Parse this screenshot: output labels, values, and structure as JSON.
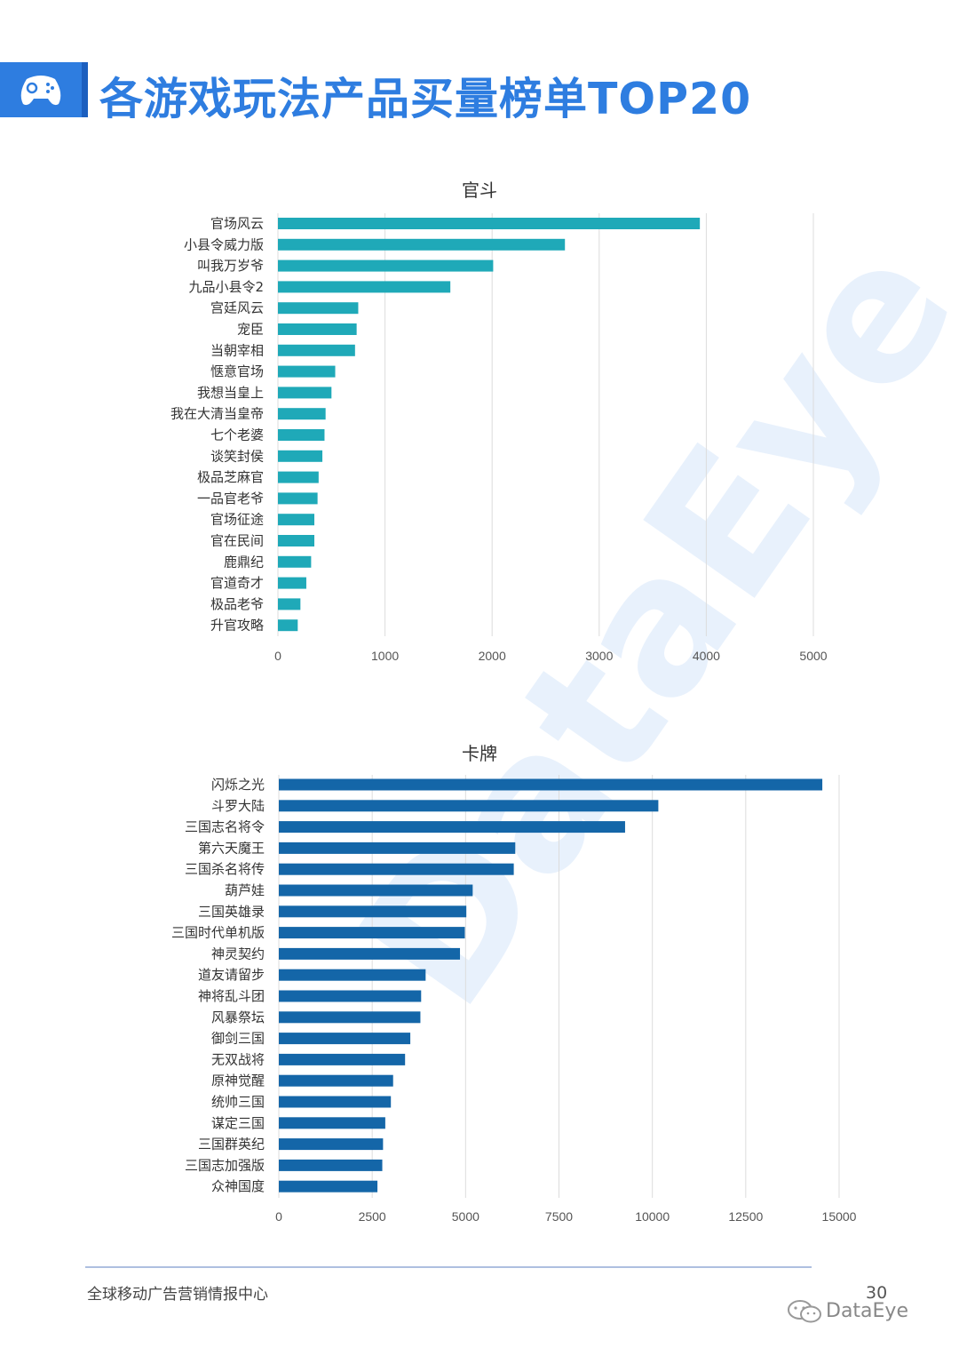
{
  "header": {
    "title": "各游戏玩法产品买量榜单TOP20",
    "icon": "gamepad-icon"
  },
  "watermark": "DataEye",
  "footer": {
    "org": "全球移动广告营销情报中心",
    "page_number": "30",
    "brand": "DataEye",
    "brand_icon": "wechat-icon"
  },
  "chart_data": [
    {
      "type": "bar",
      "orientation": "horizontal",
      "title": "官斗",
      "color": "#1fa9b8",
      "categories": [
        "官场风云",
        "小县令威力版",
        "叫我万岁爷",
        "九品小县令2",
        "宫廷风云",
        "宠臣",
        "当朝宰相",
        "惬意官场",
        "我想当皇上",
        "我在大清当皇帝",
        "七个老婆",
        "谈笑封侯",
        "极品芝麻官",
        "一品官老爷",
        "官场征途",
        "官在民间",
        "鹿鼎纪",
        "官道奇才",
        "极品老爷",
        "升官攻略"
      ],
      "values": [
        3940,
        2680,
        2010,
        1610,
        750,
        735,
        720,
        535,
        500,
        445,
        435,
        415,
        380,
        370,
        340,
        340,
        310,
        265,
        210,
        185
      ],
      "xlim": [
        0,
        5000
      ],
      "xticks": [
        "0",
        "1000",
        "2000",
        "3000",
        "4000",
        "5000"
      ],
      "grid": true,
      "legend": "none"
    },
    {
      "type": "bar",
      "orientation": "horizontal",
      "title": "卡牌",
      "color": "#1466a8",
      "categories": [
        "闪烁之光",
        "斗罗大陆",
        "三国志名将令",
        "第六天魔王",
        "三国杀名将传",
        "葫芦娃",
        "三国英雄录",
        "三国时代单机版",
        "神灵契约",
        "道友请留步",
        "神将乱斗团",
        "风暴祭坛",
        "御剑三国",
        "无双战将",
        "原神觉醒",
        "统帅三国",
        "谋定三国",
        "三国群英纪",
        "三国志加强版",
        "众神国度"
      ],
      "values": [
        14550,
        10160,
        9270,
        6330,
        6290,
        5190,
        5020,
        4980,
        4850,
        3930,
        3810,
        3790,
        3520,
        3380,
        3060,
        3000,
        2850,
        2790,
        2770,
        2640
      ],
      "xlim": [
        0,
        15000
      ],
      "xticks": [
        "0",
        "2500",
        "5000",
        "7500",
        "10000",
        "12500",
        "15000"
      ],
      "grid": true,
      "legend": "none"
    }
  ]
}
